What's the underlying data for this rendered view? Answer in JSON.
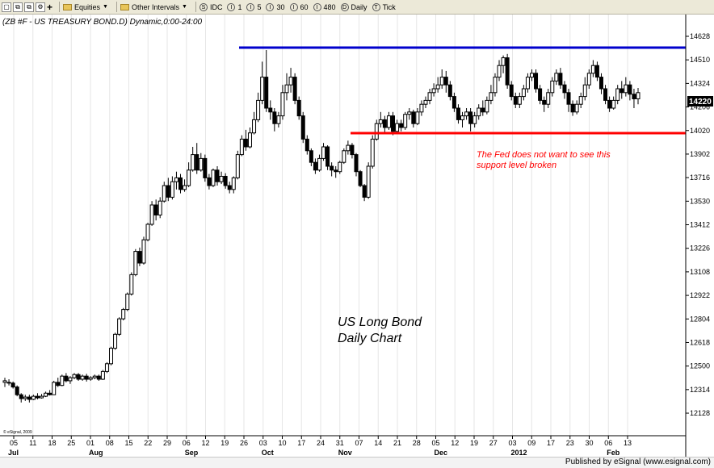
{
  "toolbar": {
    "items": [
      {
        "label": "Equities",
        "icon": "folder-icon",
        "dropdown": true
      },
      {
        "label": "Other Intervals",
        "icon": "folder-icon",
        "dropdown": true
      },
      {
        "label": "IDC",
        "icon": "s-circle-icon"
      },
      {
        "label": "1",
        "icon": "i-circle-icon"
      },
      {
        "label": "5",
        "icon": "i-circle-icon"
      },
      {
        "label": "30",
        "icon": "i-circle-icon"
      },
      {
        "label": "60",
        "icon": "i-circle-icon"
      },
      {
        "label": "480",
        "icon": "i-circle-icon"
      },
      {
        "label": "Daily",
        "icon": "d-circle-icon"
      },
      {
        "label": "Tick",
        "icon": "t-circle-icon"
      }
    ]
  },
  "footer": {
    "text": "Published by eSignal (www.esignal.com)"
  },
  "chart_data": {
    "type": "candlestick",
    "title": "(ZB #F - US TREASURY BOND.D) Dynamic,0:00-24:00",
    "watermark": "© eSignal, 2009",
    "annotation_main": [
      "US Long Bond",
      "Daily Chart"
    ],
    "annotation_support": [
      "The Fed does not want to see this",
      "support level broken"
    ],
    "last_price_label": "14220",
    "y_ticks": [
      "14628",
      "14510",
      "14324",
      "14206",
      "14020",
      "13902",
      "13716",
      "13530",
      "13412",
      "13226",
      "13108",
      "12922",
      "12804",
      "12618",
      "12500",
      "12314",
      "12128"
    ],
    "x_day_ticks": [
      "05",
      "11",
      "18",
      "25",
      "01",
      "08",
      "15",
      "22",
      "29",
      "06",
      "12",
      "19",
      "26",
      "03",
      "10",
      "17",
      "24",
      "31",
      "07",
      "14",
      "21",
      "28",
      "05",
      "12",
      "19",
      "27",
      "03",
      "09",
      "17",
      "23",
      "30",
      "06",
      "13"
    ],
    "x_month_labels": [
      "Jul",
      "Aug",
      "Sep",
      "Oct",
      "Nov",
      "Dec",
      "2012",
      "Feb"
    ],
    "resistance_line": {
      "level": "14525",
      "color": "#0000cc"
    },
    "support_line": {
      "level": "14010",
      "color": "#ff0000"
    },
    "candles_approx": [
      [
        48,
        46,
        52,
        40,
        0
      ],
      [
        46,
        45,
        50,
        42,
        1
      ],
      [
        45,
        40,
        47,
        38,
        1
      ],
      [
        40,
        30,
        42,
        28,
        1
      ],
      [
        30,
        25,
        32,
        20,
        1
      ],
      [
        25,
        27,
        30,
        22,
        0
      ],
      [
        27,
        24,
        30,
        20,
        1
      ],
      [
        24,
        28,
        30,
        23,
        0
      ],
      [
        28,
        26,
        32,
        24,
        1
      ],
      [
        26,
        28,
        31,
        25,
        0
      ],
      [
        28,
        32,
        34,
        27,
        0
      ],
      [
        32,
        30,
        36,
        29,
        1
      ],
      [
        30,
        46,
        48,
        30,
        0
      ],
      [
        46,
        42,
        52,
        40,
        1
      ],
      [
        42,
        54,
        56,
        41,
        0
      ],
      [
        54,
        48,
        58,
        46,
        1
      ],
      [
        48,
        52,
        54,
        44,
        0
      ],
      [
        52,
        56,
        58,
        50,
        0
      ],
      [
        56,
        50,
        58,
        48,
        1
      ],
      [
        50,
        54,
        56,
        48,
        0
      ],
      [
        54,
        50,
        57,
        47,
        1
      ],
      [
        50,
        52,
        54,
        48,
        0
      ],
      [
        52,
        54,
        56,
        50,
        0
      ],
      [
        54,
        50,
        56,
        48,
        1
      ],
      [
        50,
        60,
        62,
        49,
        0
      ],
      [
        60,
        70,
        72,
        58,
        0
      ],
      [
        70,
        90,
        92,
        68,
        0
      ],
      [
        90,
        108,
        110,
        88,
        0
      ],
      [
        108,
        128,
        130,
        106,
        0
      ],
      [
        128,
        140,
        142,
        126,
        0
      ],
      [
        140,
        160,
        162,
        138,
        0
      ],
      [
        160,
        185,
        188,
        158,
        0
      ],
      [
        185,
        215,
        218,
        183,
        0
      ],
      [
        215,
        200,
        220,
        196,
        1
      ],
      [
        200,
        230,
        234,
        198,
        0
      ],
      [
        230,
        250,
        252,
        228,
        0
      ],
      [
        250,
        275,
        280,
        248,
        0
      ],
      [
        275,
        262,
        282,
        255,
        1
      ],
      [
        262,
        280,
        285,
        258,
        0
      ],
      [
        280,
        300,
        305,
        278,
        0
      ],
      [
        300,
        285,
        310,
        280,
        1
      ],
      [
        285,
        305,
        312,
        282,
        0
      ],
      [
        305,
        310,
        318,
        295,
        0
      ],
      [
        310,
        295,
        315,
        290,
        1
      ],
      [
        295,
        300,
        308,
        292,
        0
      ],
      [
        300,
        320,
        330,
        298,
        0
      ],
      [
        320,
        340,
        350,
        318,
        0
      ],
      [
        340,
        320,
        355,
        315,
        1
      ],
      [
        320,
        335,
        342,
        318,
        0
      ],
      [
        335,
        310,
        340,
        305,
        1
      ],
      [
        310,
        300,
        315,
        295,
        1
      ],
      [
        300,
        320,
        322,
        298,
        0
      ],
      [
        320,
        305,
        325,
        300,
        1
      ],
      [
        305,
        312,
        318,
        302,
        0
      ],
      [
        312,
        300,
        316,
        296,
        1
      ],
      [
        300,
        295,
        305,
        290,
        1
      ],
      [
        295,
        310,
        312,
        290,
        0
      ],
      [
        310,
        340,
        345,
        308,
        0
      ],
      [
        340,
        360,
        365,
        338,
        0
      ],
      [
        360,
        350,
        372,
        345,
        1
      ],
      [
        350,
        368,
        375,
        348,
        0
      ],
      [
        368,
        385,
        395,
        366,
        0
      ],
      [
        385,
        410,
        420,
        382,
        0
      ],
      [
        410,
        440,
        460,
        405,
        0
      ],
      [
        440,
        400,
        475,
        395,
        1
      ],
      [
        400,
        395,
        410,
        385,
        1
      ],
      [
        395,
        380,
        400,
        370,
        1
      ],
      [
        380,
        390,
        395,
        375,
        0
      ],
      [
        390,
        420,
        430,
        385,
        0
      ],
      [
        420,
        430,
        445,
        410,
        0
      ],
      [
        430,
        440,
        452,
        420,
        0
      ],
      [
        440,
        410,
        445,
        405,
        1
      ],
      [
        410,
        390,
        415,
        385,
        1
      ],
      [
        390,
        360,
        395,
        355,
        1
      ],
      [
        360,
        345,
        365,
        340,
        1
      ],
      [
        345,
        330,
        348,
        325,
        1
      ],
      [
        330,
        320,
        335,
        315,
        1
      ],
      [
        320,
        335,
        340,
        318,
        0
      ],
      [
        335,
        350,
        355,
        332,
        0
      ],
      [
        350,
        325,
        352,
        320,
        1
      ],
      [
        325,
        320,
        330,
        312,
        1
      ],
      [
        320,
        318,
        325,
        310,
        1
      ],
      [
        318,
        330,
        332,
        315,
        0
      ],
      [
        330,
        345,
        348,
        328,
        0
      ],
      [
        345,
        352,
        358,
        340,
        0
      ],
      [
        352,
        340,
        355,
        335,
        1
      ],
      [
        340,
        318,
        342,
        312,
        1
      ],
      [
        318,
        300,
        320,
        298,
        1
      ],
      [
        300,
        285,
        302,
        280,
        1
      ],
      [
        285,
        325,
        330,
        283,
        0
      ],
      [
        325,
        360,
        365,
        322,
        0
      ],
      [
        360,
        380,
        385,
        358,
        0
      ],
      [
        380,
        385,
        395,
        375,
        0
      ],
      [
        385,
        375,
        390,
        368,
        1
      ],
      [
        375,
        390,
        395,
        372,
        0
      ],
      [
        390,
        370,
        395,
        365,
        1
      ],
      [
        370,
        380,
        385,
        368,
        0
      ],
      [
        380,
        375,
        385,
        370,
        1
      ],
      [
        375,
        392,
        395,
        372,
        0
      ],
      [
        392,
        395,
        400,
        385,
        0
      ],
      [
        395,
        380,
        398,
        375,
        1
      ],
      [
        380,
        395,
        400,
        378,
        0
      ],
      [
        395,
        405,
        410,
        390,
        0
      ],
      [
        405,
        410,
        415,
        400,
        0
      ],
      [
        410,
        420,
        425,
        405,
        0
      ],
      [
        420,
        425,
        432,
        415,
        0
      ],
      [
        425,
        430,
        440,
        420,
        0
      ],
      [
        430,
        440,
        450,
        425,
        0
      ],
      [
        440,
        430,
        448,
        420,
        1
      ],
      [
        430,
        415,
        435,
        410,
        1
      ],
      [
        415,
        400,
        420,
        395,
        1
      ],
      [
        400,
        385,
        405,
        380,
        1
      ],
      [
        385,
        390,
        395,
        375,
        0
      ],
      [
        390,
        395,
        400,
        385,
        0
      ],
      [
        395,
        380,
        400,
        370,
        1
      ],
      [
        380,
        390,
        395,
        375,
        0
      ],
      [
        390,
        400,
        405,
        385,
        0
      ],
      [
        400,
        395,
        410,
        390,
        1
      ],
      [
        395,
        410,
        415,
        392,
        0
      ],
      [
        410,
        420,
        430,
        405,
        0
      ],
      [
        420,
        440,
        445,
        415,
        0
      ],
      [
        440,
        455,
        462,
        435,
        0
      ],
      [
        455,
        465,
        468,
        445,
        0
      ],
      [
        465,
        430,
        470,
        425,
        1
      ],
      [
        430,
        415,
        435,
        410,
        1
      ],
      [
        415,
        405,
        420,
        400,
        1
      ],
      [
        405,
        415,
        420,
        400,
        0
      ],
      [
        415,
        425,
        430,
        410,
        0
      ],
      [
        425,
        440,
        445,
        420,
        0
      ],
      [
        440,
        445,
        450,
        435,
        0
      ],
      [
        445,
        425,
        450,
        420,
        1
      ],
      [
        425,
        410,
        430,
        405,
        1
      ],
      [
        410,
        405,
        415,
        395,
        1
      ],
      [
        405,
        420,
        425,
        400,
        0
      ],
      [
        420,
        435,
        440,
        415,
        0
      ],
      [
        435,
        445,
        450,
        430,
        0
      ],
      [
        445,
        430,
        452,
        425,
        1
      ],
      [
        430,
        420,
        435,
        412,
        1
      ],
      [
        420,
        405,
        425,
        395,
        1
      ],
      [
        405,
        395,
        410,
        390,
        1
      ],
      [
        395,
        405,
        410,
        392,
        0
      ],
      [
        405,
        415,
        420,
        400,
        0
      ],
      [
        415,
        430,
        440,
        410,
        0
      ],
      [
        430,
        445,
        450,
        425,
        0
      ],
      [
        445,
        455,
        462,
        440,
        0
      ],
      [
        455,
        440,
        460,
        435,
        1
      ],
      [
        440,
        425,
        445,
        418,
        1
      ],
      [
        425,
        410,
        430,
        405,
        1
      ],
      [
        410,
        400,
        415,
        395,
        1
      ],
      [
        400,
        410,
        415,
        398,
        0
      ],
      [
        410,
        425,
        430,
        405,
        0
      ],
      [
        425,
        420,
        435,
        412,
        1
      ],
      [
        420,
        430,
        440,
        415,
        0
      ],
      [
        430,
        418,
        435,
        410,
        1
      ],
      [
        418,
        412,
        425,
        400,
        1
      ],
      [
        412,
        420,
        426,
        405,
        0
      ]
    ]
  }
}
